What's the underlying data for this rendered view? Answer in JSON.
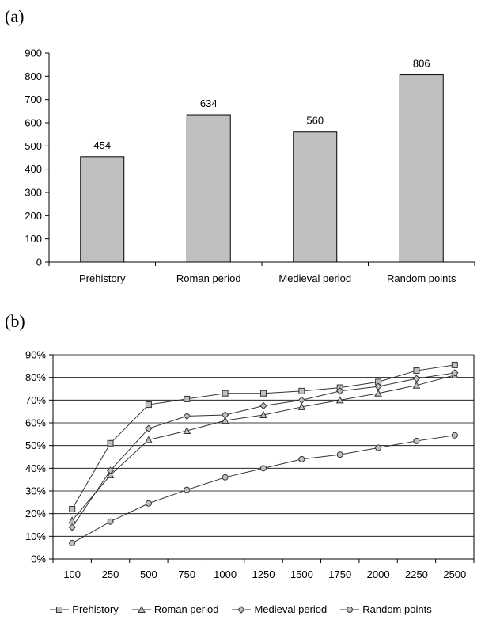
{
  "panel_labels": {
    "a": "(a)",
    "b": "(b)"
  },
  "chart_data": [
    {
      "type": "bar",
      "categories": [
        "Prehistory",
        "Roman period",
        "Medieval period",
        "Random points"
      ],
      "values": [
        454,
        634,
        560,
        806
      ],
      "data_labels": [
        "454",
        "634",
        "560",
        "806"
      ],
      "ylim": [
        0,
        900
      ],
      "yticks": [
        0,
        100,
        200,
        300,
        400,
        500,
        600,
        700,
        800,
        900
      ],
      "bar_color": "#c0c0c0",
      "grid": false,
      "title": "",
      "xlabel": "",
      "ylabel": ""
    },
    {
      "type": "line",
      "x": [
        "100",
        "250",
        "500",
        "750",
        "1000",
        "1250",
        "1500",
        "1750",
        "2000",
        "2250",
        "2500"
      ],
      "series": [
        {
          "name": "Prehistory",
          "marker": "square",
          "values": [
            22,
            51,
            68,
            70.5,
            73,
            73,
            74,
            75.5,
            78,
            83,
            85.5
          ]
        },
        {
          "name": "Roman period",
          "marker": "triangle",
          "values": [
            17,
            37,
            52.5,
            56.5,
            61,
            63.5,
            67,
            70,
            73,
            76.5,
            81
          ]
        },
        {
          "name": "Medieval period",
          "marker": "diamond",
          "values": [
            14,
            39,
            57.5,
            63,
            63.5,
            67.5,
            70,
            74,
            76,
            79.5,
            82
          ]
        },
        {
          "name": "Random points",
          "marker": "circle",
          "values": [
            7,
            16.5,
            24.5,
            30.5,
            36,
            40,
            44,
            46,
            49,
            52,
            54.5
          ]
        }
      ],
      "ylim": [
        0,
        90
      ],
      "yticks": [
        0,
        10,
        20,
        30,
        40,
        50,
        60,
        70,
        80,
        90
      ],
      "ytick_labels": [
        "0%",
        "10%",
        "20%",
        "30%",
        "40%",
        "50%",
        "60%",
        "70%",
        "80%",
        "90%"
      ],
      "grid": true,
      "legend_position": "bottom",
      "marker_fill": "#c0c0c0",
      "title": "",
      "xlabel": "",
      "ylabel": ""
    }
  ]
}
